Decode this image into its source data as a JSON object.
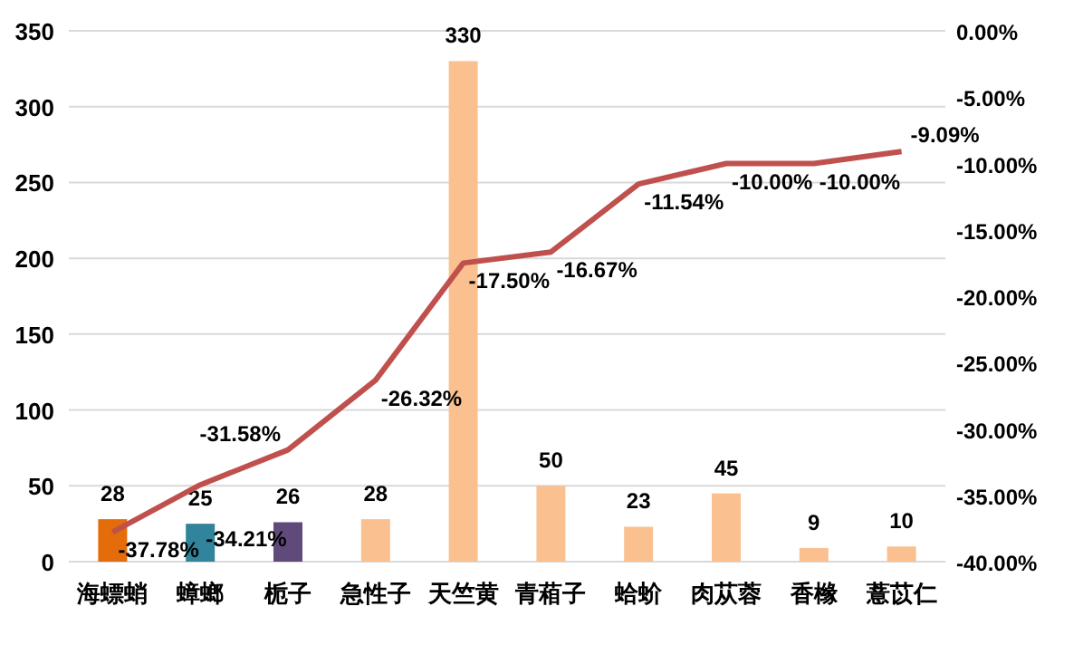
{
  "chart_data": {
    "type": "bar",
    "categories": [
      "海螵蛸",
      "蟑螂",
      "栀子",
      "急性子",
      "天竺黄",
      "青葙子",
      "蛤蚧",
      "肉苁蓉",
      "香橼",
      "薏苡仁"
    ],
    "series": [
      {
        "colors": [
          "#e46c0a",
          "#31849b",
          "#604a7b",
          "#fac090",
          "#fac090",
          "#fac090",
          "#fac090",
          "#fac090",
          "#fac090",
          "#fac090"
        ],
        "values": [
          28,
          25,
          26,
          28,
          330,
          50,
          23,
          45,
          9,
          10
        ],
        "value_labels": [
          "28",
          "25",
          "26",
          "28",
          "330",
          "50",
          "23",
          "45",
          "9",
          "10"
        ]
      },
      {
        "type": "line",
        "axis": "y2",
        "color": "#c0504d",
        "values": [
          -37.78,
          -34.21,
          -31.58,
          -26.32,
          -17.5,
          -16.67,
          -11.54,
          -10.0,
          -10.0,
          -9.09
        ],
        "value_labels": [
          "-37.78%",
          "-34.21%",
          "-31.58%",
          "-26.32%",
          "-17.50%",
          "-16.67%",
          "-11.54%",
          "-10.00%",
          "-10.00%",
          "-9.09%"
        ]
      }
    ],
    "ylim": [
      0,
      350
    ],
    "yticks": [
      0,
      50,
      100,
      150,
      200,
      250,
      300,
      350
    ],
    "y2lim": [
      -40,
      0
    ],
    "y2ticks": [
      {
        "value": -40,
        "label": "-40.00%"
      },
      {
        "value": -35,
        "label": "-35.00%"
      },
      {
        "value": -30,
        "label": "-30.00%"
      },
      {
        "value": -25,
        "label": "-25.00%"
      },
      {
        "value": -20,
        "label": "-20.00%"
      },
      {
        "value": -15,
        "label": "-15.00%"
      },
      {
        "value": -10,
        "label": "-10.00%"
      },
      {
        "value": -5,
        "label": "-5.00%"
      },
      {
        "value": 0,
        "label": "0.00%"
      }
    ],
    "grid": "y",
    "marker": "none",
    "line_style": "solid"
  }
}
